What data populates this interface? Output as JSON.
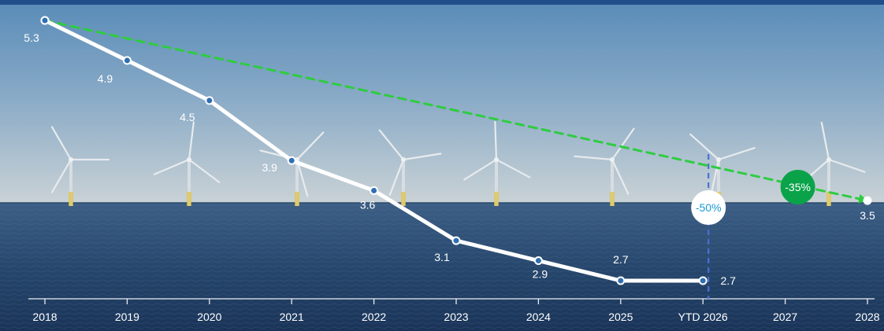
{
  "chart_data": {
    "type": "line",
    "categories": [
      "2018",
      "2019",
      "2020",
      "2021",
      "2022",
      "2023",
      "2024",
      "2025",
      "YTD 2026",
      "2027",
      "2028"
    ],
    "series": [
      {
        "values": [
          5.3,
          4.9,
          4.5,
          3.9,
          3.6,
          3.1,
          2.9,
          2.7,
          2.7,
          null,
          null
        ],
        "labels": [
          "5.3",
          "4.9",
          "4.5",
          "3.9",
          "3.6",
          "3.1",
          "2.9",
          "2.7",
          "2.7",
          "",
          ""
        ],
        "color": "#ffffff",
        "style": "solid"
      },
      {
        "values": [
          5.3,
          null,
          null,
          null,
          null,
          null,
          null,
          null,
          null,
          null,
          3.5
        ],
        "labels": [
          "",
          "",
          "",
          "",
          "",
          "",
          "",
          "",
          "",
          "",
          "3.5"
        ],
        "color": "#2ecc40",
        "style": "dashed"
      }
    ],
    "ylim": [
      2.7,
      5.3
    ],
    "annotations": [
      {
        "text": "-50%",
        "at": "YTD 2026",
        "style": "white-circle",
        "text_color": "#1a9ad6"
      },
      {
        "text": "-35%",
        "at": "2027",
        "style": "green-circle",
        "text_color": "#ffffff"
      }
    ],
    "reference_line": {
      "at": "YTD 2026",
      "style": "dashed",
      "color": "#4a6fd6"
    },
    "grid": false,
    "background": "photo of offshore wind turbines at sea"
  }
}
